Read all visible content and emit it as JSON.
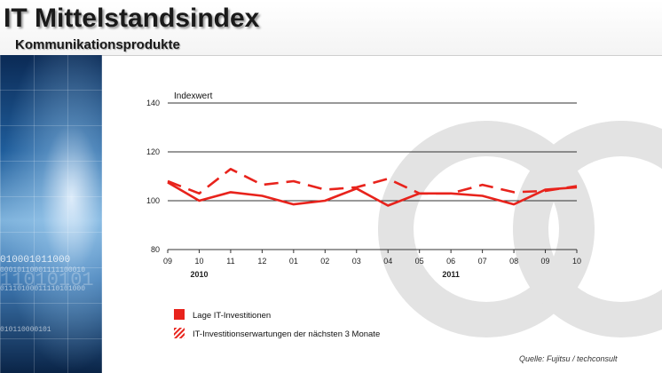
{
  "header": {
    "title": "IT Mittelstandsindex",
    "subtitle": "Kommunikationsprodukte"
  },
  "sidebar": {
    "binary_lines": [
      "010001011000",
      "00010110001111100010",
      "11010101",
      "01110100011110101000",
      "010110000101"
    ]
  },
  "source": "Quelle: Fujitsu / techconsult",
  "colors": {
    "series": "#e8231c",
    "grid": "#333333",
    "watermark": "#e3e3e3"
  },
  "chart_data": {
    "type": "line",
    "ylabel": "Indexwert",
    "ylim": [
      80,
      140
    ],
    "yticks": [
      80,
      100,
      120,
      140
    ],
    "categories": [
      "09",
      "10",
      "11",
      "12",
      "01",
      "02",
      "03",
      "04",
      "05",
      "06",
      "07",
      "08",
      "09",
      "10"
    ],
    "year_labels": [
      {
        "label": "2010",
        "category_index": 1
      },
      {
        "label": "2011",
        "category_index": 9
      }
    ],
    "series": [
      {
        "name": "Lage IT-Investitionen",
        "style": "solid",
        "values": [
          107.5,
          100,
          103.5,
          102,
          98.5,
          100,
          105,
          98,
          103,
          103,
          102,
          98.5,
          104.5,
          105.5
        ]
      },
      {
        "name": "IT-Investitionserwartungen  der nächsten 3 Monate",
        "style": "dashed",
        "values": [
          108,
          103,
          113,
          106.5,
          108,
          104.5,
          105.5,
          109,
          103,
          103,
          106.5,
          103.5,
          104,
          106
        ]
      }
    ]
  }
}
